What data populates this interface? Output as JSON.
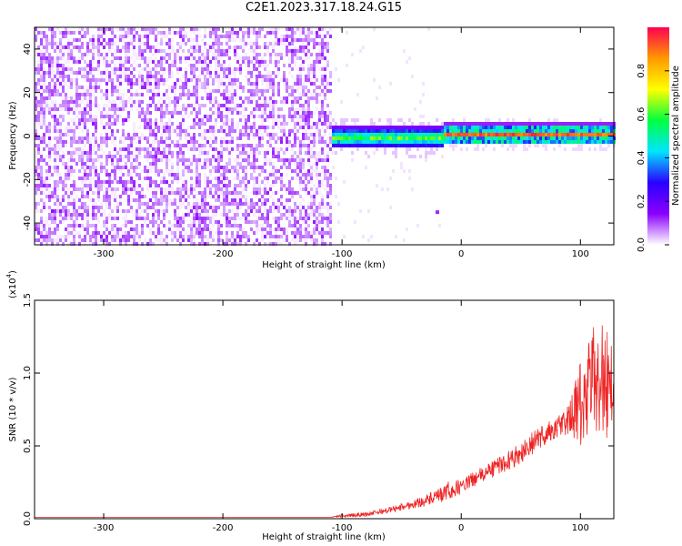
{
  "figure": {
    "title": "C2E1.2023.317.18.24.G15"
  },
  "chart_data": [
    {
      "type": "heatmap",
      "title": "C2E1.2023.317.18.24.G15",
      "xlabel": "Height of straight line (km)",
      "ylabel": "Frequency (Hz)",
      "xlim": [
        -358,
        128
      ],
      "ylim": [
        -50,
        50
      ],
      "x_ticks": [
        -300,
        -200,
        -100,
        0,
        100
      ],
      "y_ticks": [
        -40,
        -20,
        0,
        20,
        40
      ],
      "colorbar": {
        "label": "Normalized spectral amplitude",
        "range": [
          0,
          1
        ],
        "ticks": [
          "0.0",
          "0.2",
          "0.4",
          "0.6",
          "0.8"
        ],
        "colormap": [
          "#ffffff",
          "#8b00ff",
          "#2a00ff",
          "#00e5ff",
          "#00ff40",
          "#ffff00",
          "#ff9900",
          "#ff0050"
        ]
      },
      "regions": [
        {
          "x_range": [
            -358,
            -110
          ],
          "freq_range": [
            -50,
            50
          ],
          "amplitude": 0.1,
          "description_color": "#8b00ff"
        },
        {
          "x_range": [
            -110,
            -15
          ],
          "freq_range": [
            -5,
            5
          ],
          "amplitude_peak": 0.5
        },
        {
          "x_range": [
            -15,
            128
          ],
          "center_freq": 1.5,
          "amplitude_peak": 0.95
        }
      ],
      "isolated_point": {
        "x": -20,
        "y": -35
      }
    },
    {
      "type": "line",
      "xlabel": "Height of straight line (km)",
      "ylabel": "SNR (10 * v/v)",
      "y_scale_label": "(x10",
      "y_scale_exp": "4",
      "y_scale_close": ")",
      "xlim": [
        -358,
        128
      ],
      "ylim": [
        0,
        1.5
      ],
      "x_ticks": [
        -300,
        -200,
        -100,
        0,
        100
      ],
      "y_ticks": [
        "0.0",
        "0.5",
        "1.0",
        "1.5"
      ],
      "series": [
        {
          "color": "#ee2222",
          "x": [
            -358,
            -300,
            -200,
            -110,
            -100,
            -80,
            -60,
            -40,
            -20,
            -10,
            0,
            10,
            20,
            30,
            40,
            50,
            60,
            70,
            80,
            90,
            95,
            100,
            105,
            110,
            115,
            120,
            128
          ],
          "y": [
            0.01,
            0.01,
            0.01,
            0.01,
            0.02,
            0.03,
            0.06,
            0.1,
            0.15,
            0.19,
            0.22,
            0.27,
            0.31,
            0.36,
            0.4,
            0.45,
            0.52,
            0.58,
            0.62,
            0.68,
            0.72,
            0.78,
            0.8,
            0.95,
            1.0,
            0.95,
            0.9
          ],
          "noise_amplitude": [
            0,
            0,
            0,
            0,
            0.01,
            0.015,
            0.02,
            0.03,
            0.05,
            0.07,
            0.05,
            0.05,
            0.06,
            0.06,
            0.07,
            0.07,
            0.08,
            0.08,
            0.08,
            0.1,
            0.2,
            0.3,
            0.35,
            0.4,
            0.45,
            0.4,
            0.35
          ]
        }
      ]
    }
  ]
}
